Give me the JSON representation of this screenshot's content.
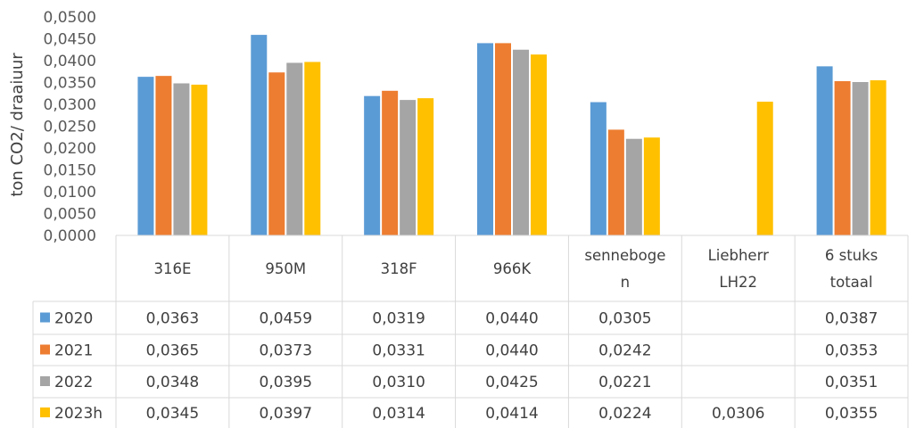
{
  "chart_data": {
    "type": "bar",
    "ylabel": "ton CO2/ draaiuur",
    "ylim": [
      0,
      0.05
    ],
    "y_ticks": [
      "0,0000",
      "0,0050",
      "0,0100",
      "0,0150",
      "0,0200",
      "0,0250",
      "0,0300",
      "0,0350",
      "0,0400",
      "0,0450",
      "0,0500"
    ],
    "grid": false,
    "legend": "data-table",
    "categories": [
      {
        "lines": [
          "316E"
        ]
      },
      {
        "lines": [
          "950M"
        ]
      },
      {
        "lines": [
          "318F"
        ]
      },
      {
        "lines": [
          "966K"
        ]
      },
      {
        "lines": [
          "senneboge",
          "n"
        ]
      },
      {
        "lines": [
          "Liebherr",
          "LH22"
        ]
      },
      {
        "lines": [
          "6 stuks",
          "totaal"
        ]
      }
    ],
    "series": [
      {
        "name": "2020",
        "color": "#5B9BD5",
        "values": [
          0.0363,
          0.0459,
          0.0319,
          0.044,
          0.0305,
          null,
          0.0387
        ],
        "labels": [
          "0,0363",
          "0,0459",
          "0,0319",
          "0,0440",
          "0,0305",
          "",
          "0,0387"
        ]
      },
      {
        "name": "2021",
        "color": "#ED7D31",
        "values": [
          0.0365,
          0.0373,
          0.0331,
          0.044,
          0.0242,
          null,
          0.0353
        ],
        "labels": [
          "0,0365",
          "0,0373",
          "0,0331",
          "0,0440",
          "0,0242",
          "",
          "0,0353"
        ]
      },
      {
        "name": "2022",
        "color": "#A5A5A5",
        "values": [
          0.0348,
          0.0395,
          0.031,
          0.0425,
          0.0221,
          null,
          0.0351
        ],
        "labels": [
          "0,0348",
          "0,0395",
          "0,0310",
          "0,0425",
          "0,0221",
          "",
          "0,0351"
        ]
      },
      {
        "name": "2023h",
        "color": "#FFC000",
        "values": [
          0.0345,
          0.0397,
          0.0314,
          0.0414,
          0.0224,
          0.0306,
          0.0355
        ],
        "labels": [
          "0,0345",
          "0,0397",
          "0,0314",
          "0,0414",
          "0,0224",
          "0,0306",
          "0,0355"
        ]
      }
    ]
  }
}
